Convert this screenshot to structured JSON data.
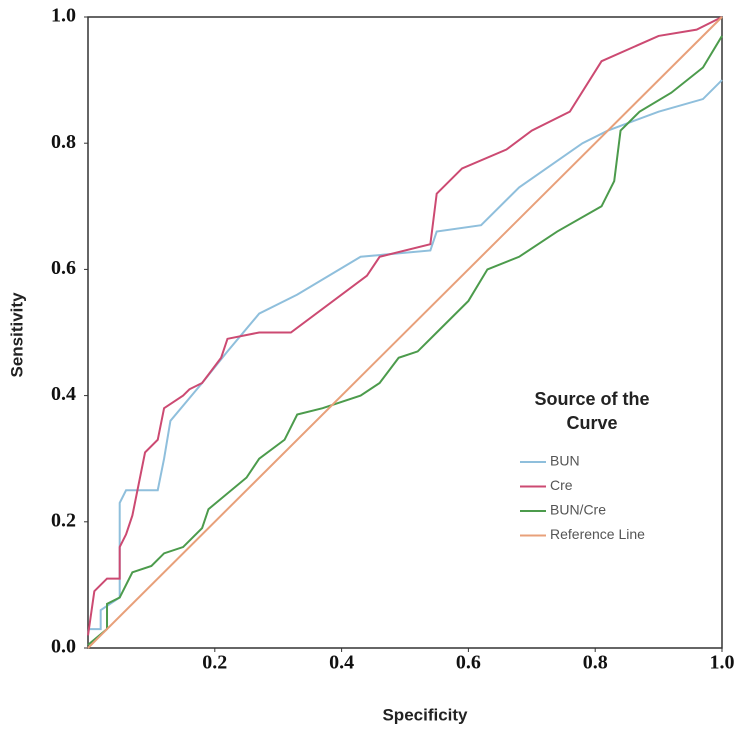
{
  "chart_data": {
    "type": "line",
    "x_label": "Specificity",
    "y_label": "Sensitivity",
    "legend_title": [
      "Source of the",
      "Curve"
    ],
    "legend_position": "right",
    "xlim": [
      0,
      1
    ],
    "ylim": [
      0,
      1
    ],
    "xticks": [
      {
        "value": 0.2,
        "label": "0.2"
      },
      {
        "value": 0.4,
        "label": "0.4"
      },
      {
        "value": 0.6,
        "label": "0.6"
      },
      {
        "value": 0.8,
        "label": "0.8"
      },
      {
        "value": 1,
        "label": "1.0"
      }
    ],
    "yticks": [
      {
        "value": 0,
        "label": "0.0"
      },
      {
        "value": 0.2,
        "label": "0.2"
      },
      {
        "value": 0.4,
        "label": "0.4"
      },
      {
        "value": 0.6,
        "label": "0.6"
      },
      {
        "value": 0.8,
        "label": "0.8"
      },
      {
        "value": 1,
        "label": "1.0"
      }
    ],
    "grid": false,
    "series": [
      {
        "name": "BUN",
        "color": "#8fbfdc",
        "x": [
          0,
          0.02,
          0.02,
          0.05,
          0.05,
          0.06,
          0.11,
          0.12,
          0.13,
          0.18,
          0.22,
          0.27,
          0.33,
          0.43,
          0.54,
          0.55,
          0.62,
          0.68,
          0.78,
          0.82,
          0.9,
          0.97,
          1.0
        ],
        "values": [
          0.03,
          0.03,
          0.06,
          0.08,
          0.23,
          0.25,
          0.25,
          0.3,
          0.36,
          0.42,
          0.47,
          0.53,
          0.56,
          0.62,
          0.63,
          0.66,
          0.67,
          0.73,
          0.8,
          0.82,
          0.85,
          0.87,
          0.9
        ]
      },
      {
        "name": "Cre",
        "color": "#cc4a72",
        "x": [
          0,
          0.01,
          0.03,
          0.05,
          0.05,
          0.06,
          0.07,
          0.09,
          0.11,
          0.12,
          0.15,
          0.16,
          0.18,
          0.21,
          0.22,
          0.27,
          0.32,
          0.44,
          0.46,
          0.54,
          0.55,
          0.59,
          0.66,
          0.7,
          0.76,
          0.81,
          0.9,
          0.96,
          1.0
        ],
        "values": [
          0.02,
          0.09,
          0.11,
          0.11,
          0.16,
          0.18,
          0.21,
          0.31,
          0.33,
          0.38,
          0.4,
          0.41,
          0.42,
          0.46,
          0.49,
          0.5,
          0.5,
          0.59,
          0.62,
          0.64,
          0.72,
          0.76,
          0.79,
          0.82,
          0.85,
          0.93,
          0.97,
          0.98,
          1.0
        ]
      },
      {
        "name": "BUN/Cre",
        "color": "#4c9b4c",
        "x": [
          0,
          0.03,
          0.03,
          0.05,
          0.07,
          0.1,
          0.12,
          0.15,
          0.18,
          0.19,
          0.25,
          0.27,
          0.31,
          0.33,
          0.37,
          0.43,
          0.46,
          0.49,
          0.52,
          0.55,
          0.6,
          0.63,
          0.68,
          0.74,
          0.81,
          0.83,
          0.84,
          0.87,
          0.92,
          0.97,
          1.0
        ],
        "values": [
          0.005,
          0.03,
          0.07,
          0.08,
          0.12,
          0.13,
          0.15,
          0.16,
          0.19,
          0.22,
          0.27,
          0.3,
          0.33,
          0.37,
          0.38,
          0.4,
          0.42,
          0.46,
          0.47,
          0.5,
          0.55,
          0.6,
          0.62,
          0.66,
          0.7,
          0.74,
          0.82,
          0.85,
          0.88,
          0.92,
          0.97
        ]
      },
      {
        "name": "Reference Line",
        "color": "#e8a07a",
        "x": [
          0,
          1
        ],
        "values": [
          0,
          1
        ]
      }
    ]
  }
}
